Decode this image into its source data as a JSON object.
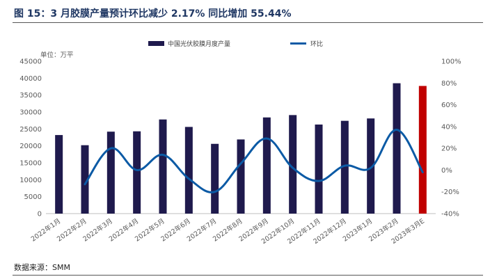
{
  "title": "图 15：3 月胶膜产量预计环比减少 2.17%  同比增加 55.44%",
  "source": "数据来源：SMM",
  "colors": {
    "bar": "#1f1a4d",
    "bar_highlight": "#c00000",
    "line": "#0b5aa5",
    "title": "#1f3763"
  },
  "chart_data": {
    "type": "bar",
    "unit_label": "单位：万平",
    "categories": [
      "2022年1月",
      "2022年2月",
      "2022年3月",
      "2022年4月",
      "2022年5月",
      "2022年6月",
      "2022年7月",
      "2022年8月",
      "2022年9月",
      "2022年10月",
      "2022年11月",
      "2022年12月",
      "2023年1月",
      "2023年2月",
      "2023年3月E"
    ],
    "series": [
      {
        "name": "中国光伏胶膜月度产量",
        "type": "bar",
        "axis": "left",
        "values": [
          23200,
          20200,
          24200,
          24300,
          27800,
          25600,
          20600,
          21900,
          28400,
          29100,
          26300,
          27400,
          28100,
          38500,
          37700
        ],
        "highlight_index": 14
      },
      {
        "name": "环比",
        "type": "line",
        "axis": "right",
        "values": [
          null,
          -13,
          20,
          0,
          14,
          -8,
          -20,
          6,
          29,
          2,
          -10,
          4,
          2,
          37,
          -2
        ]
      }
    ],
    "y_left": {
      "min": 0,
      "max": 45000,
      "step": 5000,
      "ticks": [
        "0",
        "5000",
        "10000",
        "15000",
        "20000",
        "25000",
        "30000",
        "35000",
        "40000",
        "45000"
      ]
    },
    "y_right": {
      "min": -40,
      "max": 100,
      "step": 20,
      "ticks": [
        "-40%",
        "-20%",
        "0%",
        "20%",
        "40%",
        "60%",
        "80%",
        "100%"
      ]
    },
    "grid": false,
    "legend_position": "top"
  }
}
